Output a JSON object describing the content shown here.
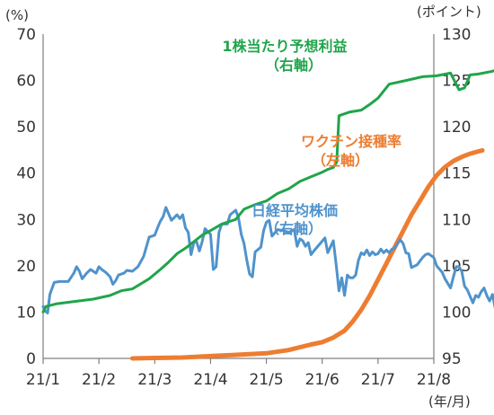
{
  "chart_data": {
    "type": "line",
    "units": {
      "left": "(%)",
      "right": "(ポイント)",
      "x": "(年/月)"
    },
    "x_ticks": [
      "21/1",
      "21/2",
      "21/3",
      "21/4",
      "21/5",
      "21/6",
      "21/7",
      "21/8"
    ],
    "left_axis": {
      "ylim": [
        0,
        70
      ],
      "ticks": [
        "0",
        "10",
        "20",
        "30",
        "40",
        "50",
        "60",
        "70"
      ]
    },
    "right_axis": {
      "ylim": [
        95,
        130
      ],
      "ticks": [
        "95",
        "100",
        "105",
        "110",
        "115",
        "120",
        "125",
        "130"
      ]
    },
    "grid": false,
    "series": [
      {
        "key": "eps",
        "name_lines": [
          "1株当たり予想利益",
          "（右軸）"
        ],
        "axis": "right",
        "color": "#1fa54a",
        "points": [
          [
            0.0,
            100.0
          ],
          [
            0.05,
            100.6
          ],
          [
            0.25,
            100.9
          ],
          [
            0.5,
            101.1
          ],
          [
            0.9,
            101.4
          ],
          [
            1.2,
            101.8
          ],
          [
            1.4,
            102.3
          ],
          [
            1.6,
            102.5
          ],
          [
            1.9,
            103.6
          ],
          [
            2.1,
            104.6
          ],
          [
            2.25,
            105.4
          ],
          [
            2.4,
            106.3
          ],
          [
            2.55,
            106.9
          ],
          [
            2.7,
            107.6
          ],
          [
            2.85,
            108.3
          ],
          [
            3.0,
            108.8
          ],
          [
            3.2,
            109.5
          ],
          [
            3.45,
            110.0
          ],
          [
            3.6,
            111.1
          ],
          [
            3.8,
            111.6
          ],
          [
            4.0,
            112.0
          ],
          [
            4.2,
            112.8
          ],
          [
            4.4,
            113.3
          ],
          [
            4.6,
            114.1
          ],
          [
            4.8,
            114.6
          ],
          [
            5.0,
            115.1
          ],
          [
            5.1,
            115.4
          ],
          [
            5.2,
            115.6
          ],
          [
            5.26,
            116.2
          ],
          [
            5.3,
            121.2
          ],
          [
            5.5,
            121.6
          ],
          [
            5.7,
            121.8
          ],
          [
            5.85,
            122.4
          ],
          [
            6.0,
            123.1
          ],
          [
            6.2,
            124.6
          ],
          [
            6.5,
            125.0
          ],
          [
            6.8,
            125.4
          ],
          [
            7.05,
            125.5
          ],
          [
            7.3,
            125.8
          ],
          [
            7.45,
            124.0
          ],
          [
            7.55,
            124.2
          ],
          [
            7.65,
            125.6
          ],
          [
            7.8,
            125.7
          ],
          [
            8.05,
            126.0
          ],
          [
            8.15,
            126.2
          ]
        ]
      },
      {
        "key": "vaccine",
        "name_lines": [
          "ワクチン接種率",
          "（左軸）"
        ],
        "axis": "left",
        "color": "#ed7d31",
        "points": [
          [
            1.6,
            0.0
          ],
          [
            2.0,
            0.1
          ],
          [
            2.5,
            0.2
          ],
          [
            3.0,
            0.5
          ],
          [
            3.5,
            0.8
          ],
          [
            4.0,
            1.1
          ],
          [
            4.4,
            1.8
          ],
          [
            4.8,
            3.0
          ],
          [
            5.0,
            3.5
          ],
          [
            5.2,
            4.5
          ],
          [
            5.4,
            6.0
          ],
          [
            5.55,
            8.0
          ],
          [
            5.7,
            10.5
          ],
          [
            5.85,
            13.5
          ],
          [
            6.0,
            17.0
          ],
          [
            6.15,
            20.5
          ],
          [
            6.3,
            24.0
          ],
          [
            6.45,
            27.5
          ],
          [
            6.6,
            31.0
          ],
          [
            6.75,
            34.0
          ],
          [
            6.9,
            37.0
          ],
          [
            7.05,
            39.5
          ],
          [
            7.2,
            41.3
          ],
          [
            7.35,
            42.6
          ],
          [
            7.5,
            43.5
          ],
          [
            7.65,
            44.2
          ],
          [
            7.8,
            44.7
          ],
          [
            7.87,
            44.9
          ]
        ]
      },
      {
        "key": "nikkei",
        "name_lines": [
          "日経平均株価",
          "（右軸）"
        ],
        "axis": "right",
        "color": "#4f93cc",
        "points": [
          [
            0.0,
            100.6
          ],
          [
            0.04,
            100.1
          ],
          [
            0.08,
            99.9
          ],
          [
            0.12,
            101.9
          ],
          [
            0.2,
            103.2
          ],
          [
            0.3,
            103.3
          ],
          [
            0.45,
            103.3
          ],
          [
            0.55,
            104.2
          ],
          [
            0.6,
            104.9
          ],
          [
            0.65,
            104.4
          ],
          [
            0.7,
            103.6
          ],
          [
            0.78,
            104.2
          ],
          [
            0.85,
            104.6
          ],
          [
            0.95,
            104.2
          ],
          [
            1.0,
            104.9
          ],
          [
            1.05,
            104.6
          ],
          [
            1.12,
            104.3
          ],
          [
            1.2,
            103.8
          ],
          [
            1.25,
            103.0
          ],
          [
            1.3,
            103.4
          ],
          [
            1.35,
            104.0
          ],
          [
            1.45,
            104.2
          ],
          [
            1.5,
            104.5
          ],
          [
            1.6,
            104.4
          ],
          [
            1.7,
            104.9
          ],
          [
            1.8,
            106.0
          ],
          [
            1.9,
            108.1
          ],
          [
            2.0,
            108.3
          ],
          [
            2.05,
            109.1
          ],
          [
            2.1,
            109.8
          ],
          [
            2.15,
            110.3
          ],
          [
            2.2,
            111.3
          ],
          [
            2.25,
            110.6
          ],
          [
            2.3,
            109.9
          ],
          [
            2.35,
            110.2
          ],
          [
            2.4,
            110.5
          ],
          [
            2.45,
            110.1
          ],
          [
            2.5,
            110.5
          ],
          [
            2.55,
            109.1
          ],
          [
            2.6,
            108.6
          ],
          [
            2.65,
            106.2
          ],
          [
            2.7,
            107.5
          ],
          [
            2.75,
            107.6
          ],
          [
            2.8,
            106.6
          ],
          [
            2.85,
            107.6
          ],
          [
            2.9,
            109.0
          ],
          [
            3.0,
            108.4
          ],
          [
            3.05,
            104.6
          ],
          [
            3.1,
            104.9
          ],
          [
            3.15,
            108.6
          ],
          [
            3.2,
            109.5
          ],
          [
            3.3,
            109.5
          ],
          [
            3.35,
            110.5
          ],
          [
            3.45,
            111.0
          ],
          [
            3.5,
            110.2
          ],
          [
            3.55,
            108.4
          ],
          [
            3.6,
            107.4
          ],
          [
            3.65,
            105.6
          ],
          [
            3.7,
            104.1
          ],
          [
            3.75,
            103.8
          ],
          [
            3.8,
            106.5
          ],
          [
            3.9,
            107.0
          ],
          [
            3.95,
            108.8
          ],
          [
            4.0,
            109.7
          ],
          [
            4.05,
            109.9
          ],
          [
            4.1,
            108.2
          ],
          [
            4.2,
            108.9
          ],
          [
            4.3,
            108.8
          ],
          [
            4.4,
            108.6
          ],
          [
            4.5,
            108.9
          ],
          [
            4.55,
            107.1
          ],
          [
            4.6,
            107.9
          ],
          [
            4.65,
            107.7
          ],
          [
            4.7,
            107.1
          ],
          [
            4.75,
            107.5
          ],
          [
            4.8,
            106.2
          ],
          [
            4.85,
            106.6
          ],
          [
            4.95,
            107.3
          ],
          [
            5.05,
            108.0
          ],
          [
            5.1,
            106.4
          ],
          [
            5.2,
            107.7
          ],
          [
            5.25,
            105.1
          ],
          [
            5.3,
            102.3
          ],
          [
            5.35,
            103.7
          ],
          [
            5.4,
            101.8
          ],
          [
            5.45,
            104.0
          ],
          [
            5.5,
            103.7
          ],
          [
            5.55,
            103.7
          ],
          [
            5.6,
            104.0
          ],
          [
            5.65,
            105.6
          ],
          [
            5.7,
            106.4
          ],
          [
            5.75,
            106.2
          ],
          [
            5.8,
            106.7
          ],
          [
            5.85,
            106.1
          ],
          [
            5.9,
            106.5
          ],
          [
            5.95,
            106.2
          ],
          [
            6.0,
            106.3
          ],
          [
            6.05,
            106.8
          ],
          [
            6.1,
            106.4
          ],
          [
            6.15,
            106.7
          ],
          [
            6.2,
            106.4
          ],
          [
            6.25,
            106.8
          ],
          [
            6.3,
            106.9
          ],
          [
            6.35,
            107.4
          ],
          [
            6.4,
            107.8
          ],
          [
            6.45,
            107.4
          ],
          [
            6.5,
            106.4
          ],
          [
            6.55,
            106.3
          ],
          [
            6.6,
            104.8
          ],
          [
            6.7,
            105.1
          ],
          [
            6.8,
            105.9
          ],
          [
            6.85,
            106.2
          ],
          [
            6.9,
            106.3
          ],
          [
            7.0,
            105.9
          ],
          [
            7.05,
            105.0
          ],
          [
            7.15,
            104.3
          ],
          [
            7.2,
            103.6
          ],
          [
            7.3,
            102.6
          ],
          [
            7.35,
            103.8
          ],
          [
            7.4,
            104.9
          ],
          [
            7.45,
            104.9
          ],
          [
            7.5,
            104.4
          ],
          [
            7.55,
            102.8
          ],
          [
            7.6,
            102.4
          ],
          [
            7.7,
            101.0
          ],
          [
            7.75,
            101.8
          ],
          [
            7.8,
            101.6
          ],
          [
            7.85,
            102.2
          ],
          [
            7.9,
            102.6
          ],
          [
            7.95,
            101.8
          ],
          [
            8.0,
            101.2
          ],
          [
            8.05,
            101.9
          ],
          [
            8.1,
            100.4
          ]
        ]
      }
    ]
  }
}
